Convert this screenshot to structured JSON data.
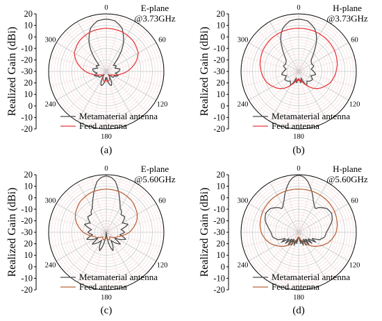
{
  "figure": {
    "ylabel": "Realized Gain (dBi)",
    "angle_labels": [
      "0",
      "60",
      "120",
      "180",
      "240",
      "300"
    ],
    "legend": [
      "Metamaterial antenna",
      "Feed antenna"
    ],
    "colors": {
      "metamaterial": "#4a4a4a",
      "feed_ab": "#e8393c",
      "feed_cd": "#b8663b",
      "grid": "#c8c8c8",
      "fine_grid": "#f2d6d6",
      "axis": "#000000"
    }
  },
  "chart_data": [
    {
      "type": "polar-line",
      "caption": "(a)",
      "plane_label": [
        "E-plane",
        "@3.73GHz"
      ],
      "r_ticks_upper": [
        "20",
        "10",
        "0",
        "-10",
        "-20",
        "-30"
      ],
      "r_ticks_lower": [
        "-20",
        "-10",
        "0",
        "10",
        "20"
      ],
      "rlim": [
        -30,
        20
      ],
      "series": [
        {
          "name": "Metamaterial antenna",
          "angle_deg": [
            0,
            10,
            20,
            25,
            30,
            35,
            40,
            45,
            50,
            55,
            60,
            70,
            80,
            90,
            100,
            110,
            120,
            130,
            140,
            145,
            150,
            155,
            160,
            165,
            170,
            175,
            180
          ],
          "gain_dbi": [
            15.5,
            14.5,
            10,
            5,
            0,
            -6,
            -13,
            -19,
            -22,
            -21,
            -20,
            -22,
            -18,
            -19,
            -22,
            -19,
            -22,
            -22,
            -26,
            -27,
            -23,
            -19,
            -17,
            -18,
            -20,
            -25,
            -23
          ]
        },
        {
          "name": "Feed antenna",
          "angle_deg": [
            0,
            20,
            40,
            60,
            70,
            80,
            90,
            100,
            110,
            120,
            130,
            140,
            150,
            160,
            170,
            180
          ],
          "gain_dbi": [
            7.5,
            7,
            5.5,
            2,
            -2,
            -7,
            -12,
            -17,
            -21,
            -24,
            -25,
            -26,
            -25,
            -22,
            -21,
            -22
          ]
        }
      ]
    },
    {
      "type": "polar-line",
      "caption": "(b)",
      "plane_label": [
        "H-plane",
        "@3.73GHz"
      ],
      "r_ticks_upper": [
        "20",
        "10",
        "0",
        "-10",
        "-20",
        "-30"
      ],
      "r_ticks_lower": [
        "-20",
        "-10",
        "0",
        "10",
        "20"
      ],
      "rlim": [
        -30,
        20
      ],
      "series": [
        {
          "name": "Metamaterial antenna",
          "angle_deg": [
            0,
            10,
            20,
            25,
            30,
            35,
            40,
            45,
            50,
            60,
            70,
            80,
            90,
            100,
            110,
            120,
            130,
            140,
            150,
            155,
            160,
            165,
            170,
            175,
            180
          ],
          "gain_dbi": [
            15.5,
            14.5,
            10,
            6,
            1,
            -5,
            -10,
            -14,
            -16,
            -17,
            -16,
            -19,
            -17,
            -15,
            -19,
            -16,
            -17,
            -19,
            -16,
            -19,
            -24,
            -21,
            -20,
            -23,
            -22
          ]
        },
        {
          "name": "Feed antenna",
          "angle_deg": [
            0,
            20,
            40,
            60,
            80,
            90,
            100,
            110,
            120,
            130,
            140,
            150,
            160,
            165,
            170,
            175,
            180
          ],
          "gain_dbi": [
            7.5,
            7.5,
            7,
            6,
            4,
            2.5,
            1,
            -1,
            -4,
            -7,
            -11,
            -16,
            -20,
            -23,
            -21,
            -24,
            -22
          ]
        }
      ]
    },
    {
      "type": "polar-line",
      "caption": "(c)",
      "plane_label": [
        "E-plane",
        "@5.60GHz"
      ],
      "r_ticks_upper": [
        "20",
        "10",
        "0",
        "-10",
        "-20",
        "-30"
      ],
      "r_ticks_lower": [
        "-20",
        "-10",
        "0",
        "10",
        "20"
      ],
      "rlim": [
        -30,
        20
      ],
      "series": [
        {
          "name": "Metamaterial antenna",
          "angle_deg": [
            0,
            5,
            10,
            15,
            20,
            25,
            30,
            35,
            40,
            50,
            60,
            70,
            80,
            90,
            100,
            110,
            120,
            125,
            130,
            140,
            150,
            155,
            160,
            165,
            170,
            175,
            180
          ],
          "gain_dbi": [
            19,
            18,
            15,
            9,
            3,
            -2,
            -6,
            -7,
            -10,
            -9,
            -14,
            -10,
            -17,
            -14,
            -18,
            -12,
            -18,
            -22,
            -14,
            -18,
            -22,
            -16,
            -13,
            -17,
            -23,
            -28,
            -30
          ]
        },
        {
          "name": "Feed antenna",
          "angle_deg": [
            0,
            20,
            40,
            60,
            70,
            80,
            90,
            100,
            110,
            120,
            130,
            140,
            150,
            160,
            170,
            180
          ],
          "gain_dbi": [
            7.5,
            7,
            5,
            1,
            -2,
            -6,
            -10,
            -15,
            -19,
            -21,
            -23,
            -25,
            -24,
            -23,
            -24,
            -25
          ]
        }
      ]
    },
    {
      "type": "polar-line",
      "caption": "(d)",
      "plane_label": [
        "H-plane",
        "@5.60GHz"
      ],
      "r_ticks_upper": [
        "20",
        "10",
        "0",
        "-10",
        "-20",
        "-30"
      ],
      "r_ticks_lower": [
        "-20",
        "-10",
        "0",
        "10",
        "20"
      ],
      "rlim": [
        -30,
        20
      ],
      "series": [
        {
          "name": "Metamaterial antenna",
          "angle_deg": [
            0,
            5,
            10,
            15,
            20,
            25,
            30,
            35,
            40,
            50,
            60,
            70,
            80,
            90,
            100,
            110,
            115,
            120,
            125,
            130,
            135,
            140,
            145,
            150,
            155,
            160,
            165,
            170,
            175,
            180
          ],
          "gain_dbi": [
            19.5,
            18.5,
            15,
            10,
            5,
            0,
            -3,
            -5,
            -2,
            2,
            3,
            1,
            -3,
            -6,
            -7,
            -11,
            -18,
            -13,
            -21,
            -15,
            -23,
            -16,
            -24,
            -17,
            -23,
            -18,
            -24,
            -20,
            -26,
            -25
          ]
        },
        {
          "name": "Feed antenna",
          "angle_deg": [
            0,
            20,
            40,
            60,
            80,
            90,
            100,
            110,
            120,
            130,
            140,
            150,
            160,
            170,
            180
          ],
          "gain_dbi": [
            7.5,
            7.5,
            7,
            6,
            4,
            2.5,
            0,
            -3,
            -7,
            -11,
            -15,
            -19,
            -22,
            -25,
            -26
          ]
        }
      ]
    }
  ]
}
